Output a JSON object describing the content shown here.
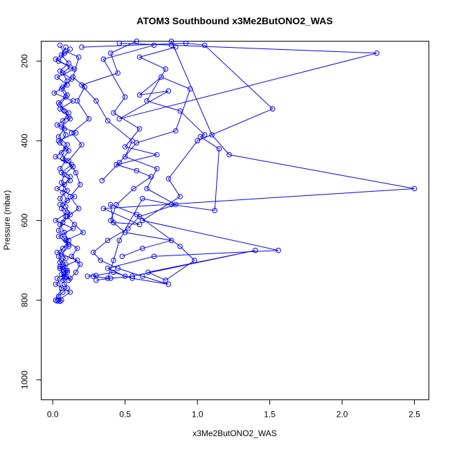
{
  "chart_data": {
    "type": "line",
    "title": "ATOM3 Southbound x3Me2ButONO2_WAS",
    "xlabel": "x3Me2ButONO2_WAS",
    "ylabel": "Pressure (mbar)",
    "xlim": [
      -0.08,
      2.6
    ],
    "ylim": [
      1050,
      150
    ],
    "y_reversed": true,
    "x_ticks": [
      "0.0",
      "0.5",
      "1.0",
      "1.5",
      "2.0",
      "2.5"
    ],
    "y_ticks": [
      "200",
      "400",
      "600",
      "800",
      "1000"
    ],
    "grid": false,
    "legend": "none",
    "series_color": "#0000ff",
    "marker": "open-circle",
    "series": [
      {
        "x": [
          0.05,
          0.08,
          0.04,
          0.12,
          0.07,
          0.1,
          0.06,
          0.09,
          0.05,
          0.11,
          0.07,
          0.08,
          0.04,
          0.1,
          0.06,
          0.09,
          0.05,
          0.12,
          0.08,
          0.07,
          0.1,
          0.06,
          0.09,
          0.05,
          0.08,
          0.11,
          0.07,
          0.04,
          0.06,
          0.09,
          0.05,
          0.1,
          0.08,
          0.07,
          0.12,
          0.06,
          0.09,
          0.05,
          0.08,
          0.1,
          0.07,
          0.04,
          0.06,
          0.03,
          0.05
        ],
        "y": [
          160,
          180,
          200,
          215,
          230,
          250,
          270,
          290,
          310,
          330,
          350,
          370,
          390,
          410,
          430,
          450,
          470,
          490,
          510,
          530,
          550,
          570,
          590,
          610,
          630,
          650,
          670,
          690,
          700,
          710,
          720,
          730,
          740,
          750,
          745,
          735,
          725,
          715,
          760,
          770,
          780,
          790,
          800,
          802,
          803
        ]
      },
      {
        "x": [
          0.09,
          0.06,
          0.11,
          0.05,
          0.13,
          0.07,
          0.1,
          0.04,
          0.08,
          0.12,
          0.06,
          0.09,
          0.05,
          0.11,
          0.07,
          0.14,
          0.08,
          0.06,
          0.1,
          0.05,
          0.09,
          0.12,
          0.07,
          0.04,
          0.08,
          0.11,
          0.06,
          0.09,
          0.05,
          0.07,
          0.1,
          0.08,
          0.03,
          0.06,
          0.02
        ],
        "y": [
          165,
          185,
          205,
          225,
          245,
          265,
          285,
          305,
          325,
          345,
          365,
          385,
          405,
          425,
          445,
          465,
          485,
          505,
          525,
          545,
          565,
          585,
          605,
          625,
          645,
          665,
          685,
          695,
          705,
          715,
          725,
          735,
          745,
          770,
          800
        ]
      },
      {
        "x": [
          0.12,
          0.02,
          0.15,
          0.03,
          0.1,
          0.01,
          0.14,
          0.05,
          0.11,
          0.03,
          0.16,
          0.04,
          0.09,
          0.02,
          0.13,
          0.06,
          0.12,
          0.03,
          0.15,
          0.05,
          0.1,
          0.02,
          0.14,
          0.04,
          0.11,
          0.03,
          0.17,
          0.05,
          0.09,
          0.02,
          0.12,
          0.04
        ],
        "y": [
          170,
          195,
          220,
          240,
          260,
          280,
          300,
          320,
          340,
          360,
          380,
          400,
          420,
          440,
          460,
          480,
          500,
          520,
          540,
          560,
          580,
          600,
          620,
          640,
          660,
          680,
          700,
          720,
          740,
          760,
          780,
          800
        ]
      },
      {
        "x": [
          0.09,
          0.18,
          0.14,
          0.22,
          0.17,
          0.25,
          0.13,
          0.2,
          0.11,
          0.16,
          0.19,
          0.12,
          0.18,
          0.1,
          0.15,
          0.21,
          0.09,
          0.17,
          0.13,
          0.19,
          0.16,
          0.11
        ],
        "y": [
          175,
          190,
          240,
          265,
          300,
          345,
          380,
          410,
          450,
          480,
          510,
          540,
          570,
          590,
          610,
          630,
          650,
          670,
          690,
          710,
          730,
          750
        ]
      },
      {
        "x": [
          0.58,
          0.4,
          0.45,
          0.2,
          0.3,
          0.38,
          0.55,
          0.5,
          0.72,
          0.65,
          0.85,
          0.6,
          0.52,
          0.38,
          0.28,
          0.33,
          0.45,
          0.62,
          0.8,
          0.55,
          0.42,
          0.3,
          0.24
        ],
        "y": [
          150,
          180,
          230,
          260,
          300,
          350,
          400,
          440,
          470,
          520,
          560,
          590,
          620,
          650,
          680,
          700,
          720,
          740,
          760,
          745,
          730,
          738,
          740
        ]
      },
      {
        "x": [
          0.7,
          0.35,
          0.5,
          0.42,
          0.6,
          0.5,
          0.72,
          0.44,
          0.58,
          0.68,
          0.56,
          0.44,
          0.4,
          0.5,
          0.82,
          0.62,
          0.48
        ],
        "y": [
          160,
          195,
          290,
          330,
          370,
          415,
          435,
          460,
          475,
          490,
          520,
          560,
          600,
          630,
          650,
          670,
          690
        ]
      },
      {
        "x": [
          0.85,
          0.6,
          0.78,
          0.65,
          0.88,
          1.05,
          1.02,
          1.15,
          1.12,
          0.82,
          0.62,
          0.46,
          0.42,
          0.38,
          0.28
        ],
        "y": [
          165,
          190,
          220,
          300,
          325,
          385,
          390,
          420,
          575,
          560,
          545,
          650,
          700,
          745,
          740
        ]
      },
      {
        "x": [
          0.82,
          1.1,
          1.22,
          2.5,
          0.35,
          0.6,
          0.42,
          0.4,
          0.58,
          0.88,
          0.98,
          0.78,
          0.66,
          1.4,
          0.55,
          0.4,
          0.3
        ],
        "y": [
          150,
          385,
          435,
          520,
          570,
          610,
          605,
          560,
          585,
          665,
          700,
          750,
          730,
          675,
          740,
          745,
          750
        ]
      },
      {
        "x": [
          0.2,
          0.92,
          1.05,
          1.52,
          1.0,
          0.8,
          0.88,
          0.62,
          1.56,
          0.7,
          0.38,
          0.5
        ],
        "y": [
          165,
          155,
          160,
          320,
          400,
          495,
          540,
          600,
          675,
          690,
          720,
          740
        ]
      },
      {
        "x": [
          0.46,
          0.82,
          2.24,
          0.46,
          0.8,
          0.6,
          0.75,
          0.95,
          0.85,
          0.58,
          0.46,
          0.34
        ],
        "y": [
          155,
          160,
          180,
          345,
          275,
          285,
          240,
          270,
          375,
          405,
          455,
          500
        ]
      }
    ]
  }
}
